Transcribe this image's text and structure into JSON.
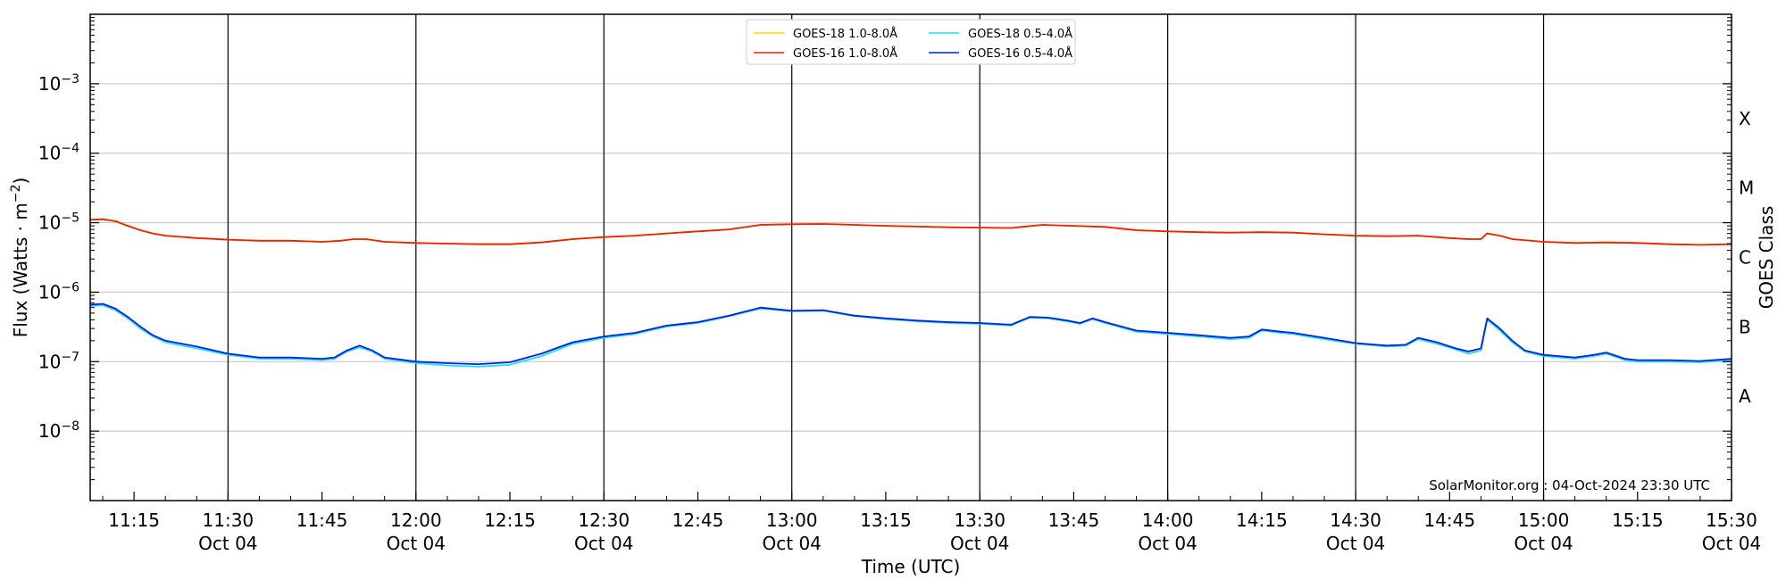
{
  "chart_data": {
    "type": "line",
    "xlabel": "Time (UTC)",
    "ylabel": "Flux (Watts · m",
    "ylabel_superscript": "−2",
    "ylabel_close": ")",
    "right_axis_label": "GOES Class",
    "credit": "SolarMonitor.org : 04-Oct-2024 23:30 UTC",
    "y_scale": "log",
    "ylim": [
      1e-09,
      0.01
    ],
    "xlim_minutes": [
      668,
      930
    ],
    "grid": "horizontal-at-decades, vertical-at-half-hours",
    "legend_position": "top-center",
    "y_ticks": [
      {
        "value": 1e-08,
        "base": "10",
        "exp": "−8"
      },
      {
        "value": 1e-07,
        "base": "10",
        "exp": "−7"
      },
      {
        "value": 1e-06,
        "base": "10",
        "exp": "−6"
      },
      {
        "value": 1e-05,
        "base": "10",
        "exp": "−5"
      },
      {
        "value": 0.0001,
        "base": "10",
        "exp": "−4"
      },
      {
        "value": 0.001,
        "base": "10",
        "exp": "−3"
      }
    ],
    "x_ticks": [
      {
        "t": 675,
        "time": "11:15",
        "date": ""
      },
      {
        "t": 690,
        "time": "11:30",
        "date": "Oct 04"
      },
      {
        "t": 705,
        "time": "11:45",
        "date": ""
      },
      {
        "t": 720,
        "time": "12:00",
        "date": "Oct 04"
      },
      {
        "t": 735,
        "time": "12:15",
        "date": ""
      },
      {
        "t": 750,
        "time": "12:30",
        "date": "Oct 04"
      },
      {
        "t": 765,
        "time": "12:45",
        "date": ""
      },
      {
        "t": 780,
        "time": "13:00",
        "date": "Oct 04"
      },
      {
        "t": 795,
        "time": "13:15",
        "date": ""
      },
      {
        "t": 810,
        "time": "13:30",
        "date": "Oct 04"
      },
      {
        "t": 825,
        "time": "13:45",
        "date": ""
      },
      {
        "t": 840,
        "time": "14:00",
        "date": "Oct 04"
      },
      {
        "t": 855,
        "time": "14:15",
        "date": ""
      },
      {
        "t": 870,
        "time": "14:30",
        "date": "Oct 04"
      },
      {
        "t": 885,
        "time": "14:45",
        "date": ""
      },
      {
        "t": 900,
        "time": "15:00",
        "date": "Oct 04"
      },
      {
        "t": 915,
        "time": "15:15",
        "date": ""
      },
      {
        "t": 930,
        "time": "15:30",
        "date": "Oct 04"
      }
    ],
    "goes_classes": [
      {
        "label": "A",
        "y": 3.16e-08
      },
      {
        "label": "B",
        "y": 3.16e-07
      },
      {
        "label": "C",
        "y": 3.16e-06
      },
      {
        "label": "M",
        "y": 3.16e-05
      },
      {
        "label": "X",
        "y": 0.000316
      }
    ],
    "series": [
      {
        "name": "GOES-18 1.0-8.0Å",
        "color": "#ffd700",
        "points": [
          [
            668,
            1.1e-05
          ],
          [
            670,
            1.12e-05
          ],
          [
            672,
            1.05e-05
          ],
          [
            674,
            9e-06
          ],
          [
            676,
            7.8e-06
          ],
          [
            678,
            7e-06
          ],
          [
            680,
            6.5e-06
          ],
          [
            685,
            6e-06
          ],
          [
            690,
            5.7e-06
          ],
          [
            695,
            5.5e-06
          ],
          [
            700,
            5.5e-06
          ],
          [
            705,
            5.3e-06
          ],
          [
            708,
            5.5e-06
          ],
          [
            710,
            5.8e-06
          ],
          [
            712,
            5.8e-06
          ],
          [
            715,
            5.3e-06
          ],
          [
            720,
            5.1e-06
          ],
          [
            725,
            5e-06
          ],
          [
            730,
            4.9e-06
          ],
          [
            735,
            4.9e-06
          ],
          [
            740,
            5.2e-06
          ],
          [
            745,
            5.8e-06
          ],
          [
            750,
            6.2e-06
          ],
          [
            755,
            6.5e-06
          ],
          [
            760,
            7e-06
          ],
          [
            765,
            7.5e-06
          ],
          [
            770,
            8e-06
          ],
          [
            775,
            9.3e-06
          ],
          [
            780,
            9.5e-06
          ],
          [
            785,
            9.6e-06
          ],
          [
            790,
            9.3e-06
          ],
          [
            795,
            9e-06
          ],
          [
            800,
            8.8e-06
          ],
          [
            805,
            8.6e-06
          ],
          [
            810,
            8.5e-06
          ],
          [
            815,
            8.4e-06
          ],
          [
            820,
            9.3e-06
          ],
          [
            825,
            9e-06
          ],
          [
            830,
            8.7e-06
          ],
          [
            835,
            7.8e-06
          ],
          [
            840,
            7.5e-06
          ],
          [
            845,
            7.3e-06
          ],
          [
            850,
            7.2e-06
          ],
          [
            855,
            7.3e-06
          ],
          [
            860,
            7.2e-06
          ],
          [
            865,
            6.8e-06
          ],
          [
            870,
            6.5e-06
          ],
          [
            875,
            6.4e-06
          ],
          [
            880,
            6.5e-06
          ],
          [
            885,
            6e-06
          ],
          [
            888,
            5.8e-06
          ],
          [
            890,
            5.8e-06
          ],
          [
            891,
            7e-06
          ],
          [
            893,
            6.5e-06
          ],
          [
            895,
            5.8e-06
          ],
          [
            900,
            5.3e-06
          ],
          [
            905,
            5.1e-06
          ],
          [
            910,
            5.2e-06
          ],
          [
            915,
            5.1e-06
          ],
          [
            920,
            4.9e-06
          ],
          [
            925,
            4.8e-06
          ],
          [
            930,
            4.9e-06
          ]
        ]
      },
      {
        "name": "GOES-16 1.0-8.0Å",
        "color": "#ee2200",
        "points": [
          [
            668,
            1.1e-05
          ],
          [
            670,
            1.12e-05
          ],
          [
            672,
            1.05e-05
          ],
          [
            674,
            9e-06
          ],
          [
            676,
            7.8e-06
          ],
          [
            678,
            7e-06
          ],
          [
            680,
            6.5e-06
          ],
          [
            685,
            6e-06
          ],
          [
            690,
            5.7e-06
          ],
          [
            695,
            5.5e-06
          ],
          [
            700,
            5.5e-06
          ],
          [
            705,
            5.3e-06
          ],
          [
            708,
            5.5e-06
          ],
          [
            710,
            5.8e-06
          ],
          [
            712,
            5.8e-06
          ],
          [
            715,
            5.3e-06
          ],
          [
            720,
            5.1e-06
          ],
          [
            725,
            5e-06
          ],
          [
            730,
            4.9e-06
          ],
          [
            735,
            4.9e-06
          ],
          [
            740,
            5.2e-06
          ],
          [
            745,
            5.8e-06
          ],
          [
            750,
            6.2e-06
          ],
          [
            755,
            6.5e-06
          ],
          [
            760,
            7e-06
          ],
          [
            765,
            7.5e-06
          ],
          [
            770,
            8e-06
          ],
          [
            775,
            9.3e-06
          ],
          [
            780,
            9.5e-06
          ],
          [
            785,
            9.6e-06
          ],
          [
            790,
            9.3e-06
          ],
          [
            795,
            9e-06
          ],
          [
            800,
            8.8e-06
          ],
          [
            805,
            8.6e-06
          ],
          [
            810,
            8.5e-06
          ],
          [
            815,
            8.4e-06
          ],
          [
            820,
            9.3e-06
          ],
          [
            825,
            9e-06
          ],
          [
            830,
            8.7e-06
          ],
          [
            835,
            7.8e-06
          ],
          [
            840,
            7.5e-06
          ],
          [
            845,
            7.3e-06
          ],
          [
            850,
            7.2e-06
          ],
          [
            855,
            7.3e-06
          ],
          [
            860,
            7.2e-06
          ],
          [
            865,
            6.8e-06
          ],
          [
            870,
            6.5e-06
          ],
          [
            875,
            6.4e-06
          ],
          [
            880,
            6.5e-06
          ],
          [
            885,
            6e-06
          ],
          [
            888,
            5.8e-06
          ],
          [
            890,
            5.8e-06
          ],
          [
            891,
            7e-06
          ],
          [
            893,
            6.5e-06
          ],
          [
            895,
            5.8e-06
          ],
          [
            900,
            5.3e-06
          ],
          [
            905,
            5.1e-06
          ],
          [
            910,
            5.2e-06
          ],
          [
            915,
            5.1e-06
          ],
          [
            920,
            4.9e-06
          ],
          [
            925,
            4.8e-06
          ],
          [
            930,
            4.9e-06
          ]
        ]
      },
      {
        "name": "GOES-18 0.5-4.0Å",
        "color": "#22ddff",
        "points": [
          [
            668,
            6.3e-07
          ],
          [
            670,
            6.5e-07
          ],
          [
            672,
            5.5e-07
          ],
          [
            674,
            4.2e-07
          ],
          [
            676,
            3e-07
          ],
          [
            678,
            2.3e-07
          ],
          [
            680,
            1.9e-07
          ],
          [
            685,
            1.55e-07
          ],
          [
            690,
            1.25e-07
          ],
          [
            695,
            1.1e-07
          ],
          [
            700,
            1.1e-07
          ],
          [
            705,
            1.05e-07
          ],
          [
            707,
            1.1e-07
          ],
          [
            709,
            1.4e-07
          ],
          [
            711,
            1.6e-07
          ],
          [
            713,
            1.4e-07
          ],
          [
            715,
            1.1e-07
          ],
          [
            720,
            9.5e-08
          ],
          [
            725,
            8.8e-08
          ],
          [
            730,
            8.5e-08
          ],
          [
            735,
            9e-08
          ],
          [
            740,
            1.2e-07
          ],
          [
            745,
            1.8e-07
          ],
          [
            750,
            2.2e-07
          ],
          [
            755,
            2.5e-07
          ],
          [
            760,
            3.2e-07
          ],
          [
            765,
            3.6e-07
          ],
          [
            770,
            4.5e-07
          ],
          [
            775,
            5.8e-07
          ],
          [
            780,
            5.3e-07
          ],
          [
            785,
            5.4e-07
          ],
          [
            790,
            4.5e-07
          ],
          [
            795,
            4.1e-07
          ],
          [
            800,
            3.8e-07
          ],
          [
            805,
            3.6e-07
          ],
          [
            810,
            3.5e-07
          ],
          [
            815,
            3.3e-07
          ],
          [
            818,
            4.3e-07
          ],
          [
            821,
            4.2e-07
          ],
          [
            824,
            3.8e-07
          ],
          [
            826,
            3.5e-07
          ],
          [
            828,
            4.1e-07
          ],
          [
            830,
            3.6e-07
          ],
          [
            835,
            2.7e-07
          ],
          [
            840,
            2.5e-07
          ],
          [
            845,
            2.3e-07
          ],
          [
            850,
            2.1e-07
          ],
          [
            853,
            2.2e-07
          ],
          [
            855,
            2.8e-07
          ],
          [
            858,
            2.6e-07
          ],
          [
            860,
            2.5e-07
          ],
          [
            865,
            2.1e-07
          ],
          [
            870,
            1.8e-07
          ],
          [
            875,
            1.65e-07
          ],
          [
            878,
            1.7e-07
          ],
          [
            880,
            2.1e-07
          ],
          [
            883,
            1.8e-07
          ],
          [
            886,
            1.5e-07
          ],
          [
            888,
            1.3e-07
          ],
          [
            890,
            1.45e-07
          ],
          [
            891,
            4e-07
          ],
          [
            893,
            2.8e-07
          ],
          [
            895,
            1.9e-07
          ],
          [
            897,
            1.4e-07
          ],
          [
            900,
            1.2e-07
          ],
          [
            905,
            1.1e-07
          ],
          [
            908,
            1.2e-07
          ],
          [
            910,
            1.3e-07
          ],
          [
            913,
            1.05e-07
          ],
          [
            915,
            1e-07
          ],
          [
            920,
            1e-07
          ],
          [
            925,
            9.8e-08
          ],
          [
            930,
            1.05e-07
          ]
        ]
      },
      {
        "name": "GOES-16 0.5-4.0Å",
        "color": "#0022dd",
        "points": [
          [
            668,
            6.6e-07
          ],
          [
            670,
            6.8e-07
          ],
          [
            672,
            5.8e-07
          ],
          [
            674,
            4.4e-07
          ],
          [
            676,
            3.2e-07
          ],
          [
            678,
            2.4e-07
          ],
          [
            680,
            2e-07
          ],
          [
            685,
            1.65e-07
          ],
          [
            690,
            1.3e-07
          ],
          [
            695,
            1.15e-07
          ],
          [
            700,
            1.15e-07
          ],
          [
            705,
            1.1e-07
          ],
          [
            707,
            1.15e-07
          ],
          [
            709,
            1.45e-07
          ],
          [
            711,
            1.7e-07
          ],
          [
            713,
            1.45e-07
          ],
          [
            715,
            1.15e-07
          ],
          [
            720,
            1e-07
          ],
          [
            725,
            9.5e-08
          ],
          [
            730,
            9.2e-08
          ],
          [
            735,
            9.8e-08
          ],
          [
            740,
            1.3e-07
          ],
          [
            745,
            1.9e-07
          ],
          [
            750,
            2.3e-07
          ],
          [
            755,
            2.6e-07
          ],
          [
            760,
            3.3e-07
          ],
          [
            765,
            3.7e-07
          ],
          [
            770,
            4.6e-07
          ],
          [
            775,
            6e-07
          ],
          [
            780,
            5.4e-07
          ],
          [
            785,
            5.5e-07
          ],
          [
            790,
            4.6e-07
          ],
          [
            795,
            4.2e-07
          ],
          [
            800,
            3.9e-07
          ],
          [
            805,
            3.7e-07
          ],
          [
            810,
            3.6e-07
          ],
          [
            815,
            3.4e-07
          ],
          [
            818,
            4.4e-07
          ],
          [
            821,
            4.3e-07
          ],
          [
            824,
            3.9e-07
          ],
          [
            826,
            3.6e-07
          ],
          [
            828,
            4.2e-07
          ],
          [
            830,
            3.7e-07
          ],
          [
            835,
            2.8e-07
          ],
          [
            840,
            2.6e-07
          ],
          [
            845,
            2.4e-07
          ],
          [
            850,
            2.2e-07
          ],
          [
            853,
            2.3e-07
          ],
          [
            855,
            2.9e-07
          ],
          [
            858,
            2.7e-07
          ],
          [
            860,
            2.6e-07
          ],
          [
            865,
            2.2e-07
          ],
          [
            870,
            1.85e-07
          ],
          [
            875,
            1.7e-07
          ],
          [
            878,
            1.75e-07
          ],
          [
            880,
            2.2e-07
          ],
          [
            883,
            1.9e-07
          ],
          [
            886,
            1.55e-07
          ],
          [
            888,
            1.4e-07
          ],
          [
            890,
            1.55e-07
          ],
          [
            891,
            4.2e-07
          ],
          [
            893,
            3e-07
          ],
          [
            895,
            2e-07
          ],
          [
            897,
            1.45e-07
          ],
          [
            900,
            1.25e-07
          ],
          [
            905,
            1.15e-07
          ],
          [
            908,
            1.25e-07
          ],
          [
            910,
            1.35e-07
          ],
          [
            913,
            1.1e-07
          ],
          [
            915,
            1.05e-07
          ],
          [
            920,
            1.05e-07
          ],
          [
            925,
            1.02e-07
          ],
          [
            930,
            1.1e-07
          ]
        ]
      }
    ]
  }
}
